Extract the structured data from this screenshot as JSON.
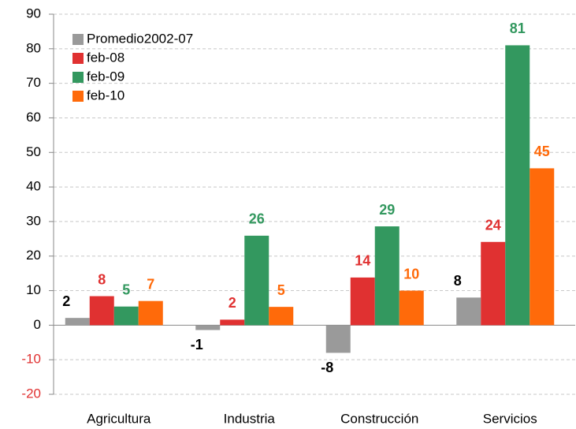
{
  "chart_data": {
    "type": "bar",
    "categories": [
      "Agricultura",
      "Industria",
      "Construcción",
      "Servicios"
    ],
    "series": [
      {
        "name": "Promedio2002-07",
        "color": "#9a9a9a",
        "label_color": "#000000",
        "values": [
          2.1,
          -1.4,
          -8.0,
          8.0
        ],
        "value_labels": [
          "2",
          "-1",
          "-8",
          "8"
        ]
      },
      {
        "name": "feb-08",
        "color": "#e03131",
        "label_color": "#e03131",
        "values": [
          8.4,
          1.6,
          13.8,
          24.1
        ],
        "value_labels": [
          "8",
          "2",
          "14",
          "24"
        ]
      },
      {
        "name": "feb-09",
        "color": "#33985f",
        "label_color": "#33985f",
        "values": [
          5.4,
          25.9,
          28.6,
          81.0
        ],
        "value_labels": [
          "5",
          "26",
          "29",
          "81"
        ]
      },
      {
        "name": "feb-10",
        "color": "#ff6a0a",
        "label_color": "#ff6a0a",
        "values": [
          7.0,
          5.3,
          10.0,
          45.4
        ],
        "value_labels": [
          "7",
          "5",
          "10",
          "45"
        ]
      }
    ],
    "ylim": [
      -20,
      90
    ],
    "yticks": [
      -20,
      -10,
      0,
      10,
      20,
      30,
      40,
      50,
      60,
      70,
      80,
      90
    ],
    "grid": true,
    "legend": "upper-left"
  }
}
